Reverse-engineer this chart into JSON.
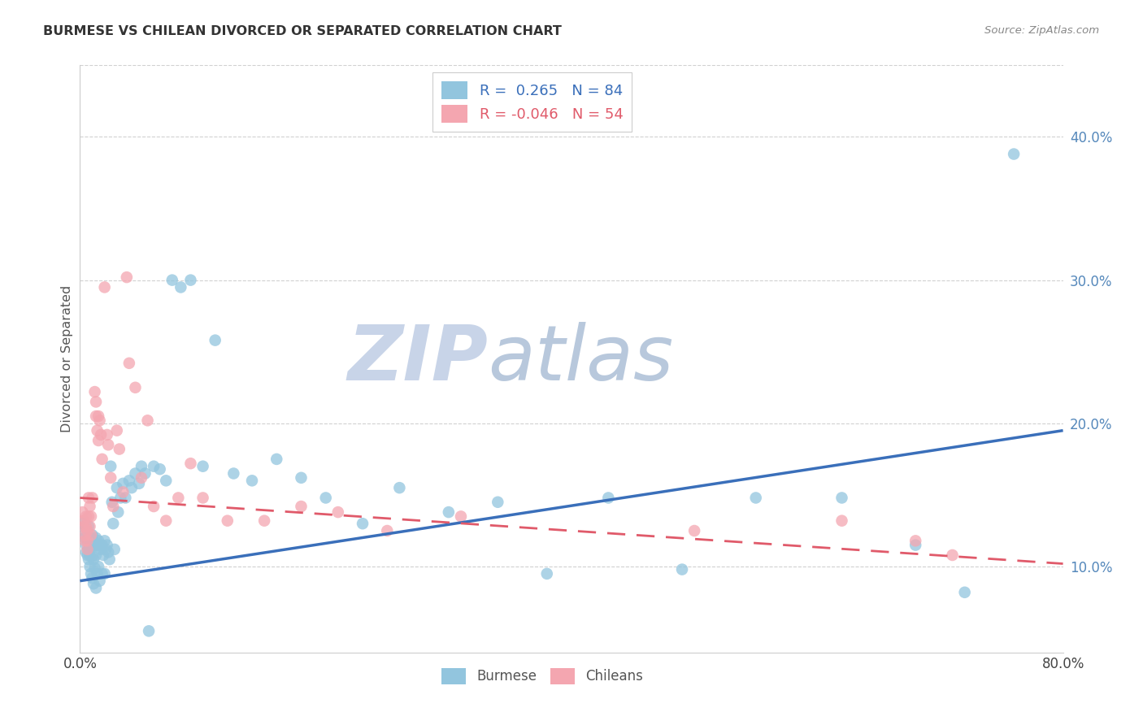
{
  "title": "BURMESE VS CHILEAN DIVORCED OR SEPARATED CORRELATION CHART",
  "source": "Source: ZipAtlas.com",
  "ylabel": "Divorced or Separated",
  "xlim": [
    0.0,
    0.8
  ],
  "ylim": [
    0.04,
    0.45
  ],
  "yticks": [
    0.1,
    0.2,
    0.3,
    0.4
  ],
  "ytick_labels": [
    "10.0%",
    "20.0%",
    "30.0%",
    "40.0%"
  ],
  "burmese_R": 0.265,
  "burmese_N": 84,
  "chilean_R": -0.046,
  "chilean_N": 54,
  "burmese_color": "#92c5de",
  "chilean_color": "#f4a6b0",
  "burmese_line_color": "#3a6fba",
  "chilean_line_color": "#e05a6a",
  "watermark_zip_color": "#c8d4e8",
  "watermark_atlas_color": "#b8c8dc",
  "legend_burmese": "Burmese",
  "legend_chilean": "Chileans",
  "burmese_x": [
    0.002,
    0.003,
    0.004,
    0.005,
    0.005,
    0.006,
    0.006,
    0.007,
    0.007,
    0.007,
    0.008,
    0.008,
    0.008,
    0.009,
    0.009,
    0.009,
    0.01,
    0.01,
    0.01,
    0.011,
    0.011,
    0.011,
    0.012,
    0.012,
    0.013,
    0.013,
    0.013,
    0.014,
    0.014,
    0.015,
    0.015,
    0.016,
    0.016,
    0.017,
    0.018,
    0.018,
    0.019,
    0.02,
    0.02,
    0.021,
    0.022,
    0.023,
    0.024,
    0.025,
    0.026,
    0.027,
    0.028,
    0.03,
    0.031,
    0.033,
    0.035,
    0.037,
    0.04,
    0.042,
    0.045,
    0.048,
    0.05,
    0.053,
    0.056,
    0.06,
    0.065,
    0.07,
    0.075,
    0.082,
    0.09,
    0.1,
    0.11,
    0.125,
    0.14,
    0.16,
    0.18,
    0.2,
    0.23,
    0.26,
    0.3,
    0.34,
    0.38,
    0.43,
    0.49,
    0.55,
    0.62,
    0.68,
    0.72,
    0.76
  ],
  "burmese_y": [
    0.13,
    0.125,
    0.12,
    0.11,
    0.115,
    0.118,
    0.108,
    0.112,
    0.105,
    0.128,
    0.115,
    0.108,
    0.1,
    0.12,
    0.113,
    0.095,
    0.122,
    0.107,
    0.092,
    0.118,
    0.105,
    0.088,
    0.115,
    0.099,
    0.12,
    0.108,
    0.085,
    0.115,
    0.095,
    0.118,
    0.1,
    0.115,
    0.09,
    0.112,
    0.115,
    0.095,
    0.108,
    0.118,
    0.095,
    0.112,
    0.115,
    0.11,
    0.105,
    0.17,
    0.145,
    0.13,
    0.112,
    0.155,
    0.138,
    0.148,
    0.158,
    0.148,
    0.16,
    0.155,
    0.165,
    0.158,
    0.17,
    0.165,
    0.055,
    0.17,
    0.168,
    0.16,
    0.3,
    0.295,
    0.3,
    0.17,
    0.258,
    0.165,
    0.16,
    0.175,
    0.162,
    0.148,
    0.13,
    0.155,
    0.138,
    0.145,
    0.095,
    0.148,
    0.098,
    0.148,
    0.148,
    0.115,
    0.082,
    0.388
  ],
  "chilean_x": [
    0.002,
    0.003,
    0.003,
    0.004,
    0.004,
    0.005,
    0.005,
    0.006,
    0.006,
    0.006,
    0.007,
    0.007,
    0.008,
    0.008,
    0.009,
    0.009,
    0.01,
    0.012,
    0.013,
    0.013,
    0.014,
    0.015,
    0.015,
    0.016,
    0.017,
    0.018,
    0.02,
    0.022,
    0.023,
    0.025,
    0.027,
    0.03,
    0.032,
    0.035,
    0.038,
    0.04,
    0.045,
    0.05,
    0.055,
    0.06,
    0.07,
    0.08,
    0.09,
    0.1,
    0.12,
    0.15,
    0.18,
    0.21,
    0.25,
    0.31,
    0.5,
    0.62,
    0.68,
    0.71
  ],
  "chilean_y": [
    0.138,
    0.132,
    0.128,
    0.122,
    0.118,
    0.135,
    0.128,
    0.125,
    0.118,
    0.112,
    0.148,
    0.135,
    0.142,
    0.128,
    0.135,
    0.122,
    0.148,
    0.222,
    0.215,
    0.205,
    0.195,
    0.205,
    0.188,
    0.202,
    0.192,
    0.175,
    0.295,
    0.192,
    0.185,
    0.162,
    0.142,
    0.195,
    0.182,
    0.152,
    0.302,
    0.242,
    0.225,
    0.162,
    0.202,
    0.142,
    0.132,
    0.148,
    0.172,
    0.148,
    0.132,
    0.132,
    0.142,
    0.138,
    0.125,
    0.135,
    0.125,
    0.132,
    0.118,
    0.108
  ],
  "blue_line_x0": 0.0,
  "blue_line_y0": 0.09,
  "blue_line_x1": 0.8,
  "blue_line_y1": 0.195,
  "pink_line_x0": 0.0,
  "pink_line_y0": 0.148,
  "pink_line_x1": 0.8,
  "pink_line_y1": 0.102
}
